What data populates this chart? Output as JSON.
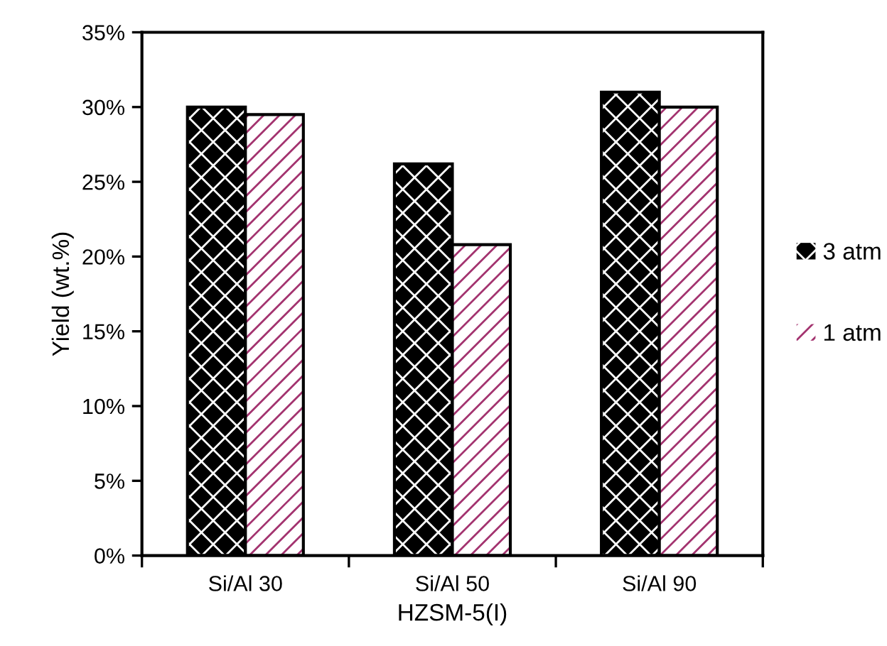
{
  "chart_data": {
    "type": "bar",
    "xlabel": "HZSM-5(I)",
    "ylabel": "Yield (wt.%)",
    "categories": [
      "Si/Al 30",
      "Si/Al 50",
      "Si/Al 90"
    ],
    "series": [
      {
        "name": "3 atm",
        "color": "#000000",
        "values": [
          30,
          26.2,
          31
        ]
      },
      {
        "name": "1 atm",
        "color": "#a3336f",
        "values": [
          29.5,
          20.8,
          30
        ]
      }
    ],
    "ylim": [
      0,
      35
    ],
    "yticks": [
      {
        "value": 0,
        "label": "0%"
      },
      {
        "value": 5,
        "label": "5%"
      },
      {
        "value": 10,
        "label": "10%"
      },
      {
        "value": 15,
        "label": "15%"
      },
      {
        "value": 20,
        "label": "20%"
      },
      {
        "value": 25,
        "label": "25%"
      },
      {
        "value": 30,
        "label": "30%"
      },
      {
        "value": 35,
        "label": "35%"
      }
    ],
    "grid": false,
    "legend": "right"
  }
}
